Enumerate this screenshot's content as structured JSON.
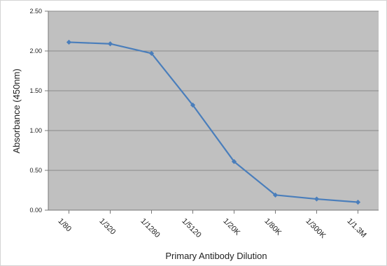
{
  "chart_data": {
    "type": "line",
    "title": "",
    "xlabel": "Primary Antibody Dilution",
    "ylabel": "Absorbance (450nm)",
    "categories": [
      "1/80",
      "1/320",
      "1/1280",
      "1/5120",
      "1/20K",
      "1/80K",
      "1/300K",
      "1/1.3M"
    ],
    "series": [
      {
        "values": [
          2.11,
          2.09,
          1.97,
          1.32,
          0.61,
          0.19,
          0.14,
          0.1
        ]
      }
    ],
    "ylim": [
      0,
      2.5
    ],
    "yticks": [
      "0.00",
      "0.50",
      "1.00",
      "1.50",
      "2.00",
      "2.50"
    ],
    "grid": "horizontal",
    "legend": "none",
    "colors": {
      "plot_background": "#c0c0c0",
      "gridline": "#8a8a8a",
      "series": "#4a7ebb"
    }
  }
}
